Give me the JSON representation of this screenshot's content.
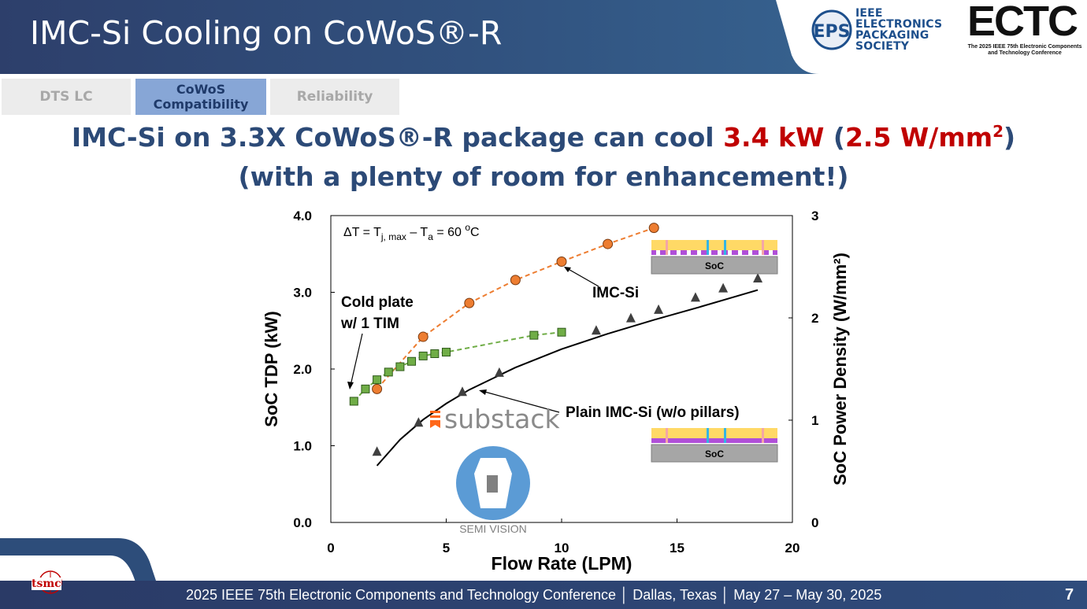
{
  "header": {
    "title": "IMC-Si Cooling on CoWoS®-R"
  },
  "logos": {
    "eps_lines": [
      "IEEE",
      "ELECTRONICS",
      "PACKAGING",
      "SOCIETY"
    ],
    "ectc": "ECTC",
    "ectc_sub": "The 2025 IEEE 75th Electronic Components and Technology Conference",
    "tsmc": "tsmc",
    "semivision": "SEMI VISION",
    "substack": "substack"
  },
  "tabs": [
    {
      "label": "DTS LC",
      "active": false
    },
    {
      "label": "CoWoS Compatibility",
      "active": true
    },
    {
      "label": "Reliability",
      "active": false
    }
  ],
  "headline": {
    "line1_a": "IMC-Si on 3.3X CoWoS®-R package can cool ",
    "line1_red1": "3.4 kW",
    "line1_mid": " (",
    "line1_red2": "2.5 W/mm",
    "line1_sup": "2",
    "line1_end": ")",
    "line2": "(with a plenty of room for enhancement!)"
  },
  "chart_data": {
    "type": "scatter",
    "xlabel": "Flow Rate (LPM)",
    "ylabel": "SoC TDP (kW)",
    "y2label": "SoC Power Density (W/mm²)",
    "xlim": [
      0,
      20
    ],
    "ylim": [
      0,
      4.0
    ],
    "y2lim": [
      0,
      3
    ],
    "xticks": [
      "0",
      "5",
      "10",
      "15",
      "20"
    ],
    "yticks": [
      "0.0",
      "1.0",
      "2.0",
      "3.0",
      "4.0"
    ],
    "y2ticks": [
      "0",
      "1",
      "2",
      "3"
    ],
    "series": [
      {
        "name": "IMC-Si",
        "marker": "circle",
        "color": "#ed7d31",
        "line": "dashed",
        "x": [
          2.0,
          4.0,
          6.0,
          8.0,
          10.0,
          12.0,
          14.0
        ],
        "y": [
          1.74,
          2.42,
          2.86,
          3.16,
          3.4,
          3.63,
          3.84
        ]
      },
      {
        "name": "Cold plate w/ 1 TIM",
        "marker": "square",
        "color": "#70ad47",
        "line": "dashed",
        "x": [
          1.0,
          1.5,
          2.0,
          2.5,
          3.0,
          3.5,
          4.0,
          4.5,
          5.0,
          8.8,
          10.0
        ],
        "y": [
          1.58,
          1.74,
          1.86,
          1.96,
          2.03,
          2.1,
          2.17,
          2.2,
          2.22,
          2.44,
          2.48
        ]
      },
      {
        "name": "Plain IMC-Si (w/o pillars)",
        "marker": "triangle",
        "color": "#404040",
        "line": "solid-fit",
        "x": [
          2.0,
          3.8,
          5.7,
          7.3,
          11.5,
          13.0,
          14.2,
          15.8,
          17.0,
          18.5
        ],
        "y": [
          0.92,
          1.3,
          1.7,
          1.95,
          2.5,
          2.66,
          2.77,
          2.93,
          3.05,
          3.18
        ]
      }
    ],
    "fit_plain": {
      "x": [
        2.0,
        3.0,
        4.0,
        5.0,
        6.0,
        8.0,
        10.0,
        12.0,
        14.0,
        16.0,
        18.5
      ],
      "y": [
        0.74,
        1.08,
        1.34,
        1.55,
        1.73,
        2.02,
        2.26,
        2.46,
        2.64,
        2.81,
        3.03
      ]
    },
    "annotations": {
      "delta_t": {
        "prefix": "ΔT = T",
        "sub1": "j, max",
        "mid": " – T",
        "sub2": "a",
        "suffix": " = 60 ",
        "deg": "o",
        "unit": "C"
      },
      "imc_label": "IMC-Si",
      "cold_line1": "Cold plate",
      "cold_line2": "w/ 1 TIM",
      "plain_label": "Plain IMC-Si (w/o pillars)",
      "soc": "SoC"
    }
  },
  "footer": {
    "text": "2025 IEEE 75th  Electronic Components and Technology Conference │ Dallas, Texas │ May 27 – May 30, 2025",
    "page": "7"
  },
  "colors": {
    "header": "#2d3f6b",
    "accent_red": "#c00000",
    "tab_active": "#87a6d6",
    "headline": "#2c4a77"
  }
}
